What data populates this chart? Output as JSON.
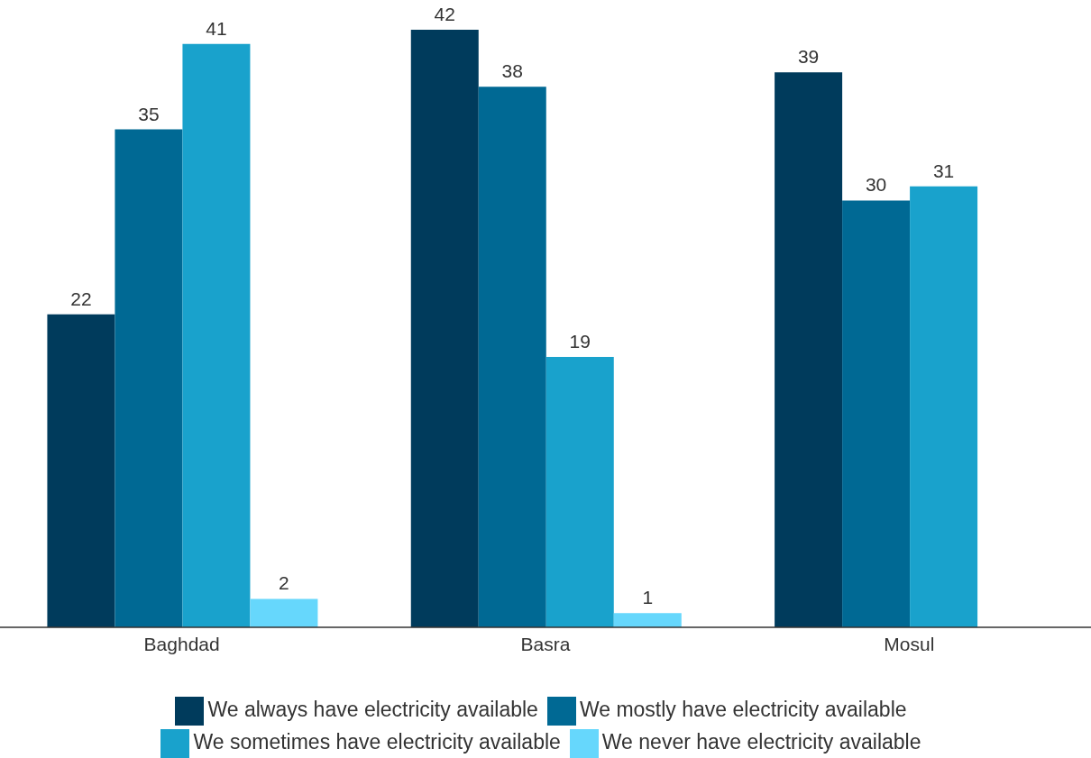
{
  "chart_data": {
    "type": "bar",
    "categories": [
      "Baghdad",
      "Basra",
      "Mosul"
    ],
    "series": [
      {
        "name": "We always have electricity available",
        "color": "#003b5c",
        "values": [
          22,
          42,
          39
        ]
      },
      {
        "name": "We mostly have electricity available",
        "color": "#006994",
        "values": [
          35,
          38,
          30
        ]
      },
      {
        "name": "We sometimes have electricity available",
        "color": "#19a2cc",
        "values": [
          41,
          19,
          31
        ]
      },
      {
        "name": "We never have electricity available",
        "color": "#66d7fc",
        "values": [
          2,
          1,
          null
        ]
      }
    ],
    "data_labels": true,
    "legend": "bottom"
  }
}
